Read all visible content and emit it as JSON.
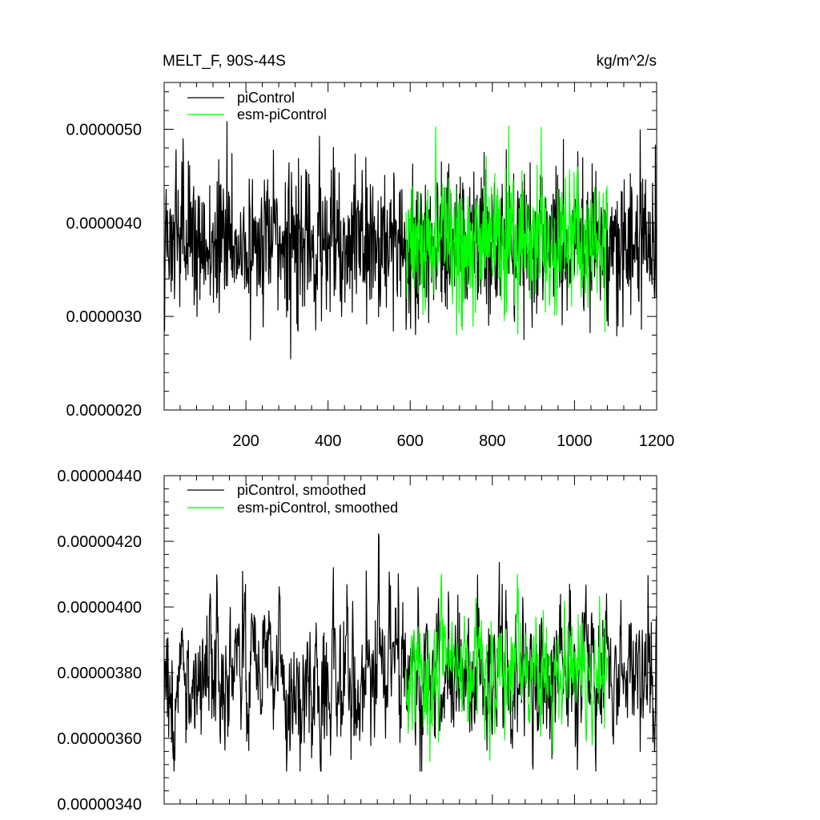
{
  "chart_data": [
    {
      "type": "line",
      "title": "MELT_F, 90S-44S",
      "units": "kg/m^2/s",
      "xlim": [
        1,
        1200
      ],
      "ylim": [
        2e-06,
        5.5e-06
      ],
      "xticks": [
        "200",
        "400",
        "600",
        "800",
        "1000",
        "1200"
      ],
      "yticks": [
        "0.0000020",
        "0.0000030",
        "0.0000040",
        "0.0000050"
      ],
      "legend_position": "top-left",
      "series": [
        {
          "name": "piControl",
          "color": "#000000",
          "x_range": [
            1,
            1200
          ],
          "mean": 3.8e-06,
          "min": 2.45e-06,
          "max": 5.4e-06
        },
        {
          "name": "esm-piControl",
          "color": "#00ff00",
          "x_range": [
            590,
            1080
          ],
          "mean": 3.8e-06,
          "min": 2.6e-06,
          "max": 5.3e-06
        }
      ]
    },
    {
      "type": "line",
      "xlim": [
        1,
        1200
      ],
      "ylim": [
        3.4e-06,
        4.4e-06
      ],
      "yticks": [
        "0.00000340",
        "0.00000360",
        "0.00000380",
        "0.00000400",
        "0.00000420",
        "0.00000440"
      ],
      "legend_position": "top-left",
      "series": [
        {
          "name": "piControl, smoothed",
          "color": "#000000",
          "x_range": [
            1,
            1200
          ],
          "mean": 3.8e-06,
          "min": 3.5e-06,
          "max": 4.25e-06
        },
        {
          "name": "esm-piControl, smoothed",
          "color": "#00ff00",
          "x_range": [
            590,
            1080
          ],
          "mean": 3.8e-06,
          "min": 3.48e-06,
          "max": 4.1e-06
        }
      ]
    }
  ]
}
